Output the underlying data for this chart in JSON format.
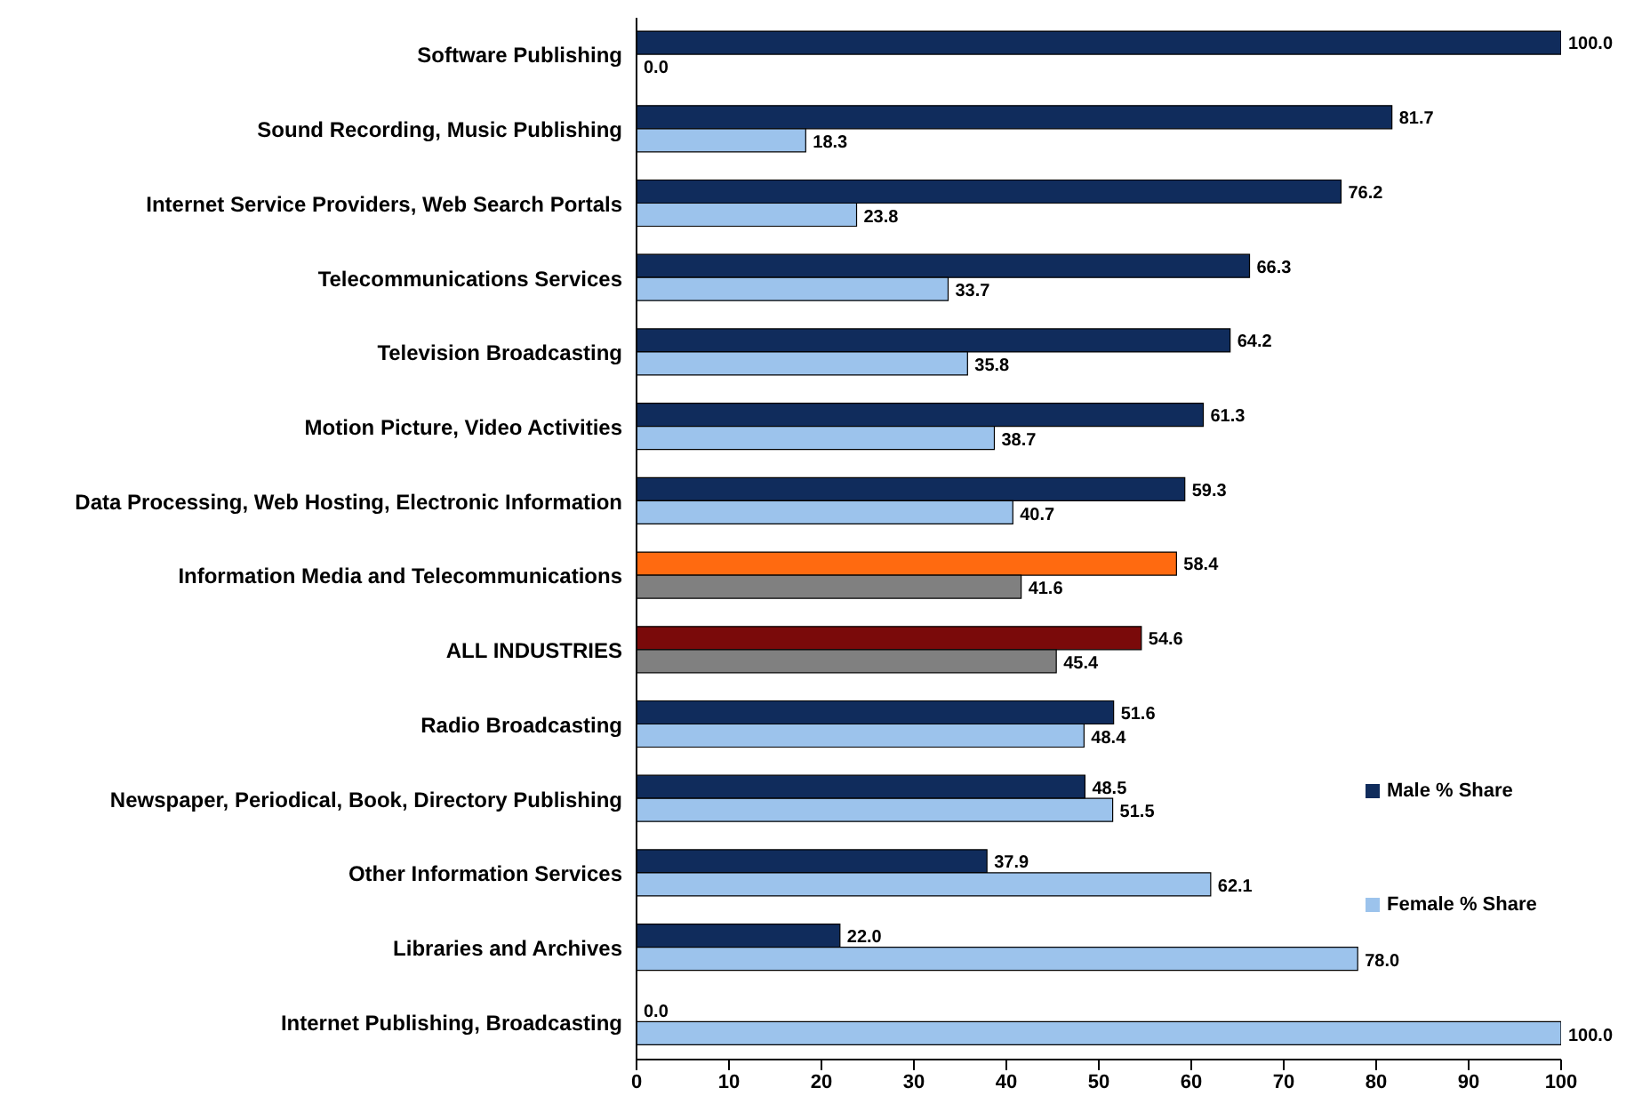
{
  "chart_data": {
    "type": "bar",
    "orientation": "horizontal",
    "categories": [
      "Software Publishing",
      "Sound Recording, Music Publishing",
      "Internet Service Providers, Web Search Portals",
      "Telecommunications Services",
      "Television Broadcasting",
      "Motion Picture, Video Activities",
      "Data Processing, Web Hosting, Electronic Information",
      "Information Media and Telecommunications",
      "ALL INDUSTRIES",
      "Radio Broadcasting",
      "Newspaper, Periodical, Book, Directory Publishing",
      "Other Information Services",
      "Libraries and Archives",
      "Internet Publishing, Broadcasting"
    ],
    "series": [
      {
        "name": "Male % Share",
        "color": "#102c5c",
        "colors": [
          "#102c5c",
          "#102c5c",
          "#102c5c",
          "#102c5c",
          "#102c5c",
          "#102c5c",
          "#102c5c",
          "#ff6a10",
          "#7a0a0a",
          "#102c5c",
          "#102c5c",
          "#102c5c",
          "#102c5c",
          "#102c5c"
        ],
        "values": [
          100.0,
          81.7,
          76.2,
          66.3,
          64.2,
          61.3,
          59.3,
          58.4,
          54.6,
          51.6,
          48.5,
          37.9,
          22.0,
          0.0
        ],
        "value_labels": [
          "100.0",
          "81.7",
          "76.2",
          "66.3",
          "64.2",
          "61.3",
          "59.3",
          "58.4",
          "54.6",
          "51.6",
          "48.5",
          "37.9",
          "22.0",
          "0.0"
        ]
      },
      {
        "name": "Female % Share",
        "color": "#9cc3ec",
        "colors": [
          "#9cc3ec",
          "#9cc3ec",
          "#9cc3ec",
          "#9cc3ec",
          "#9cc3ec",
          "#9cc3ec",
          "#9cc3ec",
          "#808080",
          "#808080",
          "#9cc3ec",
          "#9cc3ec",
          "#9cc3ec",
          "#9cc3ec",
          "#9cc3ec"
        ],
        "values": [
          0.0,
          18.3,
          23.8,
          33.7,
          35.8,
          38.7,
          40.7,
          41.6,
          45.4,
          48.4,
          51.5,
          62.1,
          78.0,
          100.0
        ],
        "value_labels": [
          "0.0",
          "18.3",
          "23.8",
          "33.7",
          "35.8",
          "38.7",
          "40.7",
          "41.6",
          "45.4",
          "48.4",
          "51.5",
          "62.1",
          "78.0",
          "100.0"
        ]
      }
    ],
    "xlim": [
      0,
      100
    ],
    "xticks": [
      0,
      10,
      20,
      30,
      40,
      50,
      60,
      70,
      80,
      90,
      100
    ],
    "grid": false,
    "legend": "right"
  }
}
